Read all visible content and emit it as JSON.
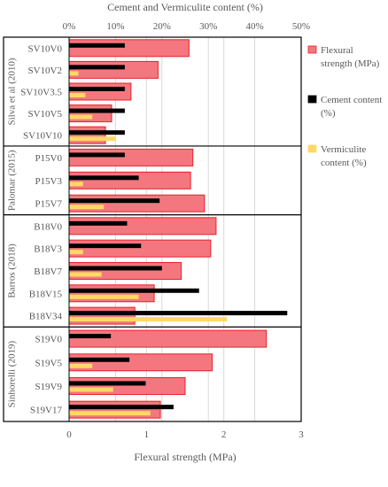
{
  "chart_data": {
    "type": "bar",
    "orientation": "horizontal",
    "title": "",
    "xlabel_bottom": "Flexural strength (MPa)",
    "xlabel_top": "Cement and Vermiculite content (%)",
    "xlim_bottom": [
      0,
      3
    ],
    "xlim_top": [
      0,
      50
    ],
    "xticks_bottom": [
      "0",
      "1",
      "2",
      "3"
    ],
    "xticks_top": [
      "0%",
      "10%",
      "20%",
      "30%",
      "40%",
      "50%"
    ],
    "grid": true,
    "legend_position": "right",
    "groups": [
      {
        "name": "Silva et al (2010)",
        "categories": [
          "SV10V0",
          "SV10V2",
          "SV10V3.5",
          "SV10V5",
          "SV10V10"
        ]
      },
      {
        "name": "Palomar (2015)",
        "categories": [
          "P15V0",
          "P15V3",
          "P15V7"
        ]
      },
      {
        "name": "Barros (2018)",
        "categories": [
          "B18V0",
          "B18V3",
          "B18V7",
          "B18V15",
          "B18V34"
        ]
      },
      {
        "name": "Sinhorelli (2019)",
        "categories": [
          "S19V0",
          "S19V5",
          "S19V9",
          "S19V17"
        ]
      }
    ],
    "categories": [
      "SV10V0",
      "SV10V2",
      "SV10V3.5",
      "SV10V5",
      "SV10V10",
      "P15V0",
      "P15V3",
      "P15V7",
      "B18V0",
      "B18V3",
      "B18V7",
      "B18V15",
      "B18V34",
      "S19V0",
      "S19V5",
      "S19V9",
      "S19V17"
    ],
    "series": [
      {
        "name": "Flexural strength (MPa)",
        "axis": "bottom",
        "color": "#f4777f",
        "edge_color": "#e8202a",
        "values": [
          1.55,
          1.15,
          0.8,
          0.55,
          0.47,
          1.6,
          1.57,
          1.75,
          1.9,
          1.83,
          1.45,
          1.1,
          0.85,
          2.55,
          1.85,
          1.5,
          1.18
        ]
      },
      {
        "name": "Cement content (%)",
        "axis": "top",
        "color": "#000000",
        "values": [
          12,
          12,
          12,
          12,
          12,
          12,
          15,
          19.5,
          12.5,
          15.5,
          20,
          28,
          47,
          9,
          13,
          16.5,
          22.5
        ]
      },
      {
        "name": "Vermiculite content (%)",
        "axis": "top",
        "color": "#ffd966",
        "values": [
          0,
          2,
          3.5,
          5,
          10,
          0,
          3,
          7.5,
          0,
          3,
          7,
          15,
          34,
          0,
          5,
          9.5,
          17.5
        ]
      }
    ]
  }
}
